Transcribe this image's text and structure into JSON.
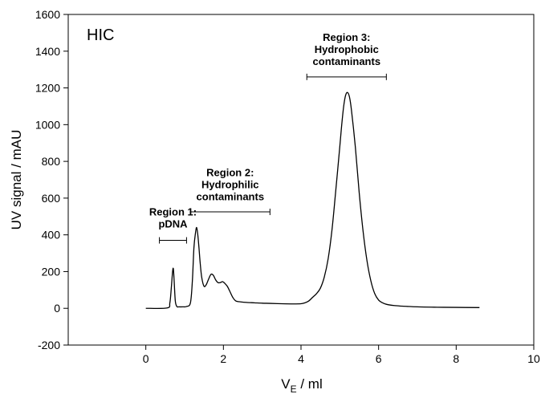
{
  "chart_data": {
    "type": "line",
    "panel_label": "HIC",
    "xlabel_main": "V",
    "xlabel_sub": "E",
    "xlabel_suffix": " / ml",
    "ylabel": "UV signal / mAU",
    "xlim": [
      -2,
      10
    ],
    "ylim": [
      -200,
      1600
    ],
    "xticks": [
      0,
      2,
      4,
      6,
      8,
      10
    ],
    "yticks": [
      -200,
      0,
      200,
      400,
      600,
      800,
      1000,
      1200,
      1400,
      1600
    ],
    "grid": false,
    "series": [
      {
        "x": [
          0,
          0.55,
          0.62,
          0.66,
          0.69,
          0.71,
          0.73,
          0.76,
          0.8,
          0.85,
          0.95,
          1.05,
          1.15,
          1.2,
          1.24,
          1.28,
          1.31,
          1.34,
          1.37,
          1.4,
          1.44,
          1.5,
          1.56,
          1.62,
          1.68,
          1.74,
          1.8,
          1.86,
          1.92,
          1.98,
          2.04,
          2.1,
          2.16,
          2.24,
          2.32,
          2.45,
          2.6,
          2.8,
          3.0,
          3.2,
          3.5,
          3.8,
          4.0,
          4.1,
          4.2,
          4.3,
          4.4,
          4.5,
          4.6,
          4.7,
          4.8,
          4.9,
          5.0,
          5.05,
          5.1,
          5.15,
          5.2,
          5.25,
          5.3,
          5.4,
          5.5,
          5.6,
          5.7,
          5.8,
          5.9,
          6.0,
          6.1,
          6.2,
          6.4,
          6.6,
          7.0,
          7.5,
          8.0,
          8.6
        ],
        "y": [
          0,
          2,
          30,
          120,
          200,
          215,
          150,
          40,
          10,
          8,
          8,
          10,
          30,
          150,
          330,
          410,
          440,
          400,
          330,
          250,
          170,
          120,
          130,
          160,
          185,
          180,
          155,
          140,
          140,
          145,
          135,
          120,
          95,
          60,
          40,
          35,
          32,
          30,
          28,
          27,
          25,
          24,
          25,
          30,
          40,
          60,
          80,
          110,
          170,
          270,
          430,
          650,
          880,
          1000,
          1100,
          1160,
          1175,
          1150,
          1080,
          880,
          630,
          420,
          260,
          150,
          80,
          45,
          30,
          22,
          15,
          12,
          8,
          6,
          5,
          4
        ]
      }
    ],
    "regions": [
      {
        "line1": "Region 1:",
        "line2": "pDNA",
        "x_start": 0.35,
        "x_end": 1.05,
        "y_bracket": 370,
        "y_text": 505
      },
      {
        "line1": "Region 2:",
        "line2": "Hydrophilic",
        "line3": "contaminants",
        "x_start": 1.15,
        "x_end": 3.2,
        "y_bracket": 525,
        "y_text": 720
      },
      {
        "line1": "Region 3:",
        "line2": "Hydrophobic",
        "line3": "contaminants",
        "x_start": 4.15,
        "x_end": 6.2,
        "y_bracket": 1260,
        "y_text": 1455
      }
    ]
  }
}
